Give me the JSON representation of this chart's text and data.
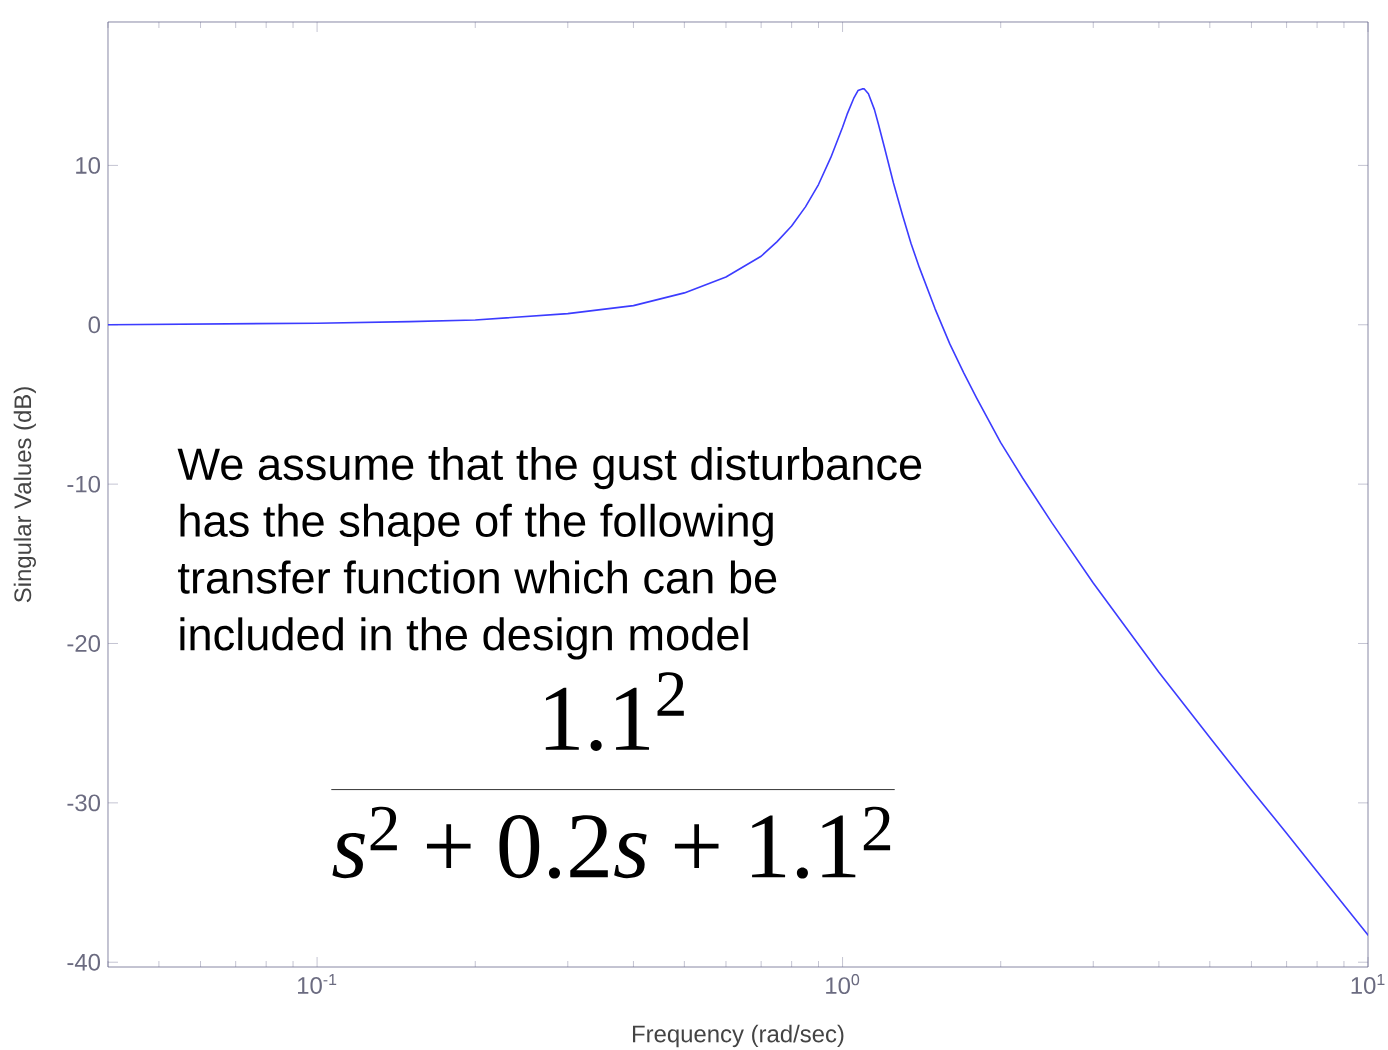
{
  "chart_data": {
    "type": "line",
    "xlabel": "Frequency (rad/sec)",
    "ylabel": "Singular Values (dB)",
    "annotations": [
      "We assume that the gust disturbance has the shape of the following transfer function which can be included in the design model",
      "\\frac{1.1^{2}}{s^{2}+0.2s+1.1^{2}}"
    ],
    "log": "x",
    "x": [
      0.04,
      0.1,
      0.15,
      0.2,
      0.3,
      0.4,
      0.5,
      0.6,
      0.7,
      0.75,
      0.8,
      0.85,
      0.9,
      0.95,
      1.0,
      1.02,
      1.05,
      1.07,
      1.09,
      1.1,
      1.12,
      1.15,
      1.17,
      1.2,
      1.25,
      1.3,
      1.35,
      1.4,
      1.5,
      1.6,
      1.7,
      1.8,
      2,
      2.2,
      2.5,
      3,
      4,
      5,
      6,
      7,
      8,
      10
    ],
    "series": [
      {
        "color": "#3c3cff",
        "values": [
          0.0,
          0.1,
          0.2,
          0.3,
          0.7,
          1.2,
          2.0,
          3.0,
          4.3,
          5.2,
          6.2,
          7.4,
          8.8,
          10.5,
          12.4,
          13.2,
          14.2,
          14.7,
          14.8,
          14.8,
          14.5,
          13.5,
          12.6,
          11.2,
          8.9,
          6.9,
          5.1,
          3.6,
          1.0,
          -1.2,
          -3.0,
          -4.6,
          -7.4,
          -9.6,
          -12.4,
          -16.2,
          -21.8,
          -25.9,
          -29.2,
          -31.9,
          -34.3,
          -38.3
        ]
      }
    ],
    "xlim": [
      0.04,
      10
    ],
    "ylim": [
      -40.3,
      19
    ],
    "xticks": [
      {
        "value": 0.1,
        "label": "10$^{-1}$"
      },
      {
        "value": 1,
        "label": "10$^{0}$"
      },
      {
        "value": 10,
        "label": "10$^{1}$"
      }
    ],
    "yticks": [
      10,
      0,
      -10,
      -20,
      -30,
      -40
    ],
    "grid": false,
    "marker": "none",
    "line_style": "solid"
  }
}
